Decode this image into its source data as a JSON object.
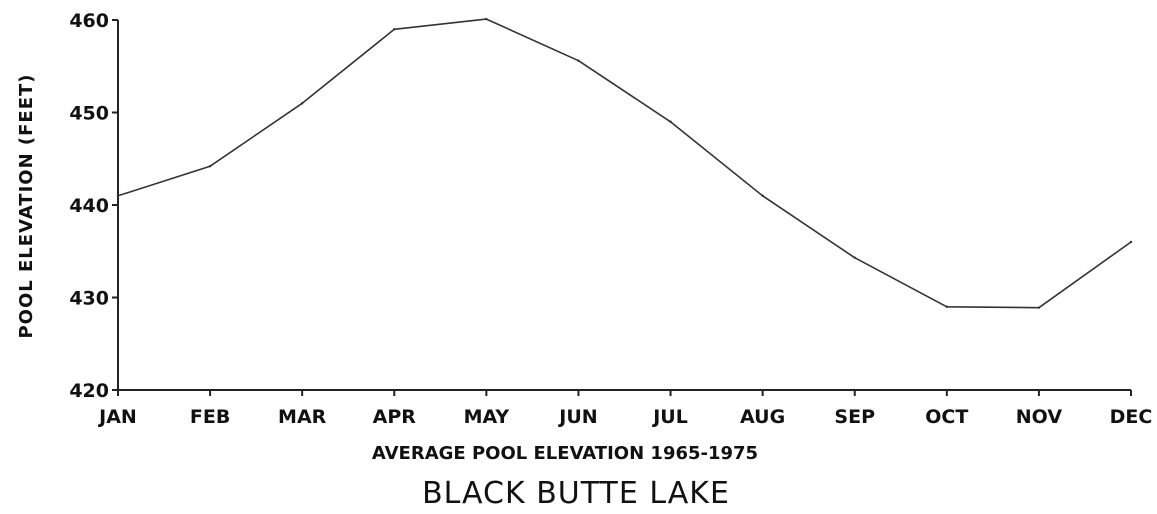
{
  "chart_data": {
    "type": "line",
    "title": "BLACK BUTTE LAKE",
    "subtitle": "AVERAGE POOL ELEVATION 1965-1975",
    "xlabel": "",
    "ylabel": "POOL ELEVATION (FEET)",
    "categories": [
      "JAN",
      "FEB",
      "MAR",
      "APR",
      "MAY",
      "JUN",
      "JUL",
      "AUG",
      "SEP",
      "OCT",
      "NOV",
      "DEC"
    ],
    "series": [
      {
        "values": [
          441.0,
          444.2,
          451.0,
          459.0,
          460.1,
          455.6,
          449.0,
          441.0,
          434.3,
          429.0,
          428.9,
          436.0
        ]
      }
    ],
    "ylim": [
      420,
      460
    ],
    "yticks": [
      420,
      430,
      440,
      450,
      460
    ],
    "grid": false,
    "colors": {
      "line": "#333333",
      "axis": "#222222",
      "text": "#111111"
    }
  }
}
